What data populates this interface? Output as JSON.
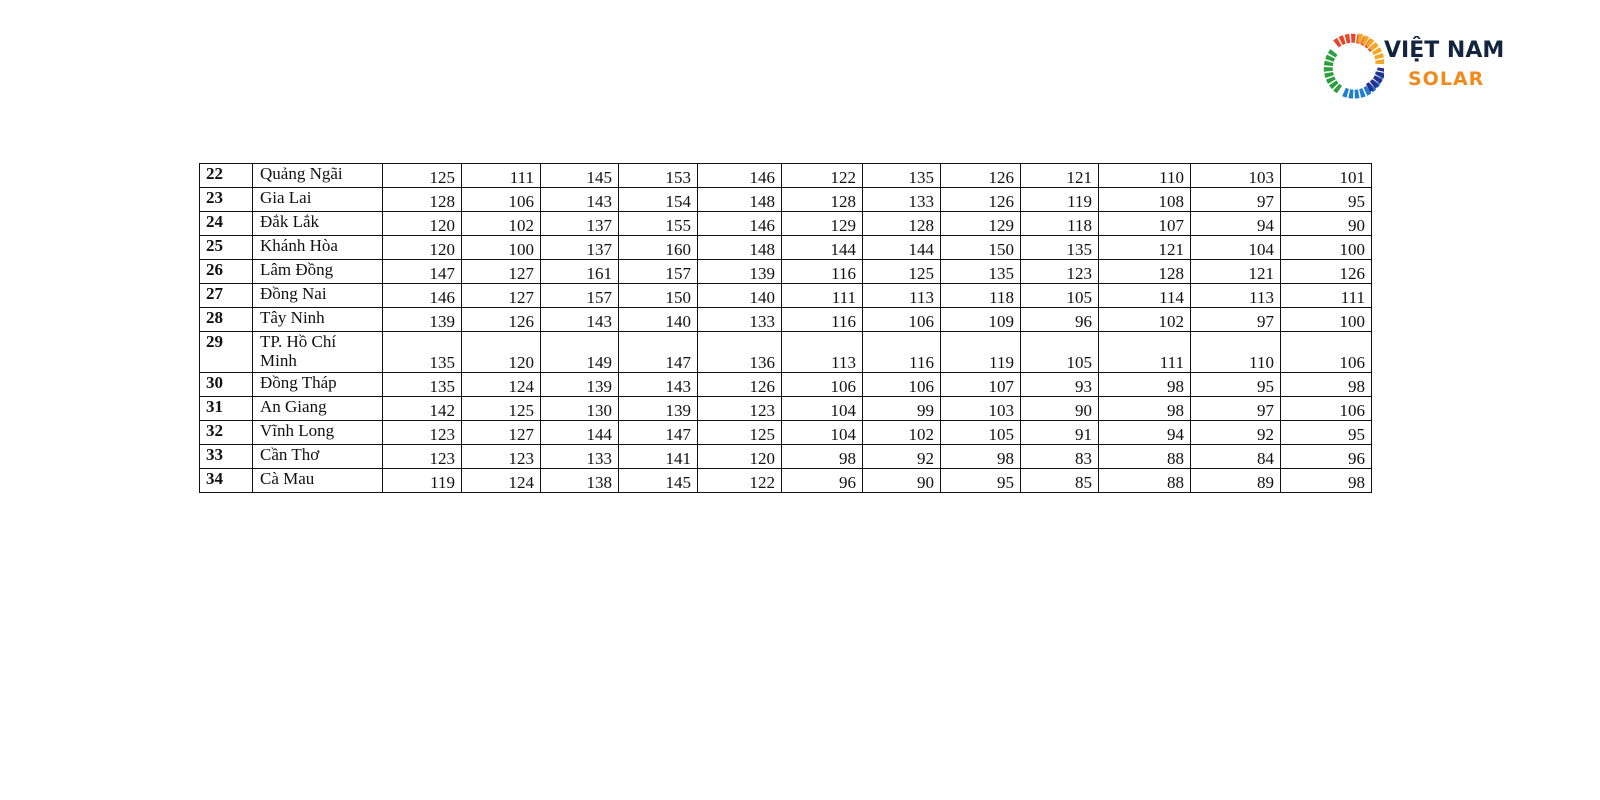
{
  "logo": {
    "line1": "VIỆT NAM",
    "line2": "SOLAR",
    "colors": {
      "dark": "#12243f",
      "orange": "#f08a1c"
    }
  },
  "table": {
    "rows": [
      {
        "no": "22",
        "name": "Quảng Ngãi",
        "values": [
          125,
          111,
          145,
          153,
          146,
          122,
          135,
          126,
          121,
          110,
          103,
          101
        ]
      },
      {
        "no": "23",
        "name": "Gia Lai",
        "values": [
          128,
          106,
          143,
          154,
          148,
          128,
          133,
          126,
          119,
          108,
          97,
          95
        ]
      },
      {
        "no": "24",
        "name": "Đắk Lắk",
        "values": [
          120,
          102,
          137,
          155,
          146,
          129,
          128,
          129,
          118,
          107,
          94,
          90
        ]
      },
      {
        "no": "25",
        "name": "Khánh Hòa",
        "values": [
          120,
          100,
          137,
          160,
          148,
          144,
          144,
          150,
          135,
          121,
          104,
          100
        ]
      },
      {
        "no": "26",
        "name": "Lâm Đồng",
        "values": [
          147,
          127,
          161,
          157,
          139,
          116,
          125,
          135,
          123,
          128,
          121,
          126
        ]
      },
      {
        "no": "27",
        "name": "Đồng Nai",
        "values": [
          146,
          127,
          157,
          150,
          140,
          111,
          113,
          118,
          105,
          114,
          113,
          111
        ]
      },
      {
        "no": "28",
        "name": "Tây Ninh",
        "values": [
          139,
          126,
          143,
          140,
          133,
          116,
          106,
          109,
          96,
          102,
          97,
          100
        ]
      },
      {
        "no": "29",
        "name": "TP. Hồ Chí Minh",
        "values": [
          135,
          120,
          149,
          147,
          136,
          113,
          116,
          119,
          105,
          111,
          110,
          106
        ]
      },
      {
        "no": "30",
        "name": "Đồng Tháp",
        "values": [
          135,
          124,
          139,
          143,
          126,
          106,
          106,
          107,
          93,
          98,
          95,
          98
        ]
      },
      {
        "no": "31",
        "name": "An Giang",
        "values": [
          142,
          125,
          130,
          139,
          123,
          104,
          99,
          103,
          90,
          98,
          97,
          106
        ]
      },
      {
        "no": "32",
        "name": "Vĩnh Long",
        "values": [
          123,
          127,
          144,
          147,
          125,
          104,
          102,
          105,
          91,
          94,
          92,
          95
        ]
      },
      {
        "no": "33",
        "name": "Cần Thơ",
        "values": [
          123,
          123,
          133,
          141,
          120,
          98,
          92,
          98,
          83,
          88,
          84,
          96
        ]
      },
      {
        "no": "34",
        "name": "Cà Mau",
        "values": [
          119,
          124,
          138,
          145,
          122,
          96,
          90,
          95,
          85,
          88,
          89,
          98
        ]
      }
    ]
  }
}
